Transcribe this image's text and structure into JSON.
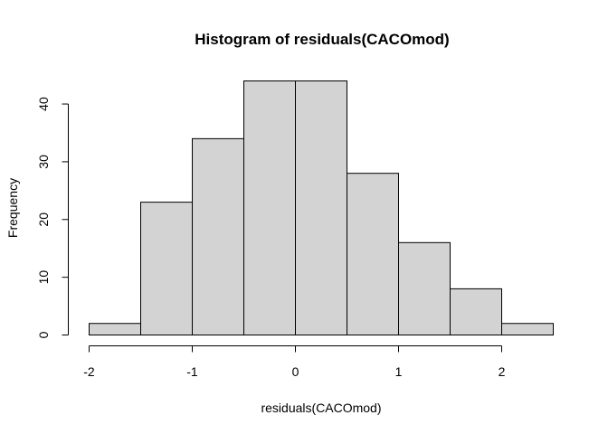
{
  "chart_data": {
    "type": "histogram",
    "title": "Histogram of residuals(CACOmod)",
    "xlabel": "residuals(CACOmod)",
    "ylabel": "Frequency",
    "bins": [
      {
        "x0": -2.0,
        "x1": -1.5,
        "count": 2
      },
      {
        "x0": -1.5,
        "x1": -1.0,
        "count": 23
      },
      {
        "x0": -1.0,
        "x1": -0.5,
        "count": 34
      },
      {
        "x0": -0.5,
        "x1": 0.0,
        "count": 44
      },
      {
        "x0": 0.0,
        "x1": 0.5,
        "count": 44
      },
      {
        "x0": 0.5,
        "x1": 1.0,
        "count": 28
      },
      {
        "x0": 1.0,
        "x1": 1.5,
        "count": 16
      },
      {
        "x0": 1.5,
        "x1": 2.0,
        "count": 8
      },
      {
        "x0": 2.0,
        "x1": 2.5,
        "count": 2
      }
    ],
    "xticks": [
      -2,
      -1,
      0,
      1,
      2
    ],
    "yticks": [
      0,
      10,
      20,
      30,
      40
    ],
    "xlim": [
      -2,
      2.5
    ],
    "ylim": [
      0,
      44
    ],
    "bar_fill": "#d3d3d3",
    "bar_stroke": "#000000",
    "grid": false
  }
}
